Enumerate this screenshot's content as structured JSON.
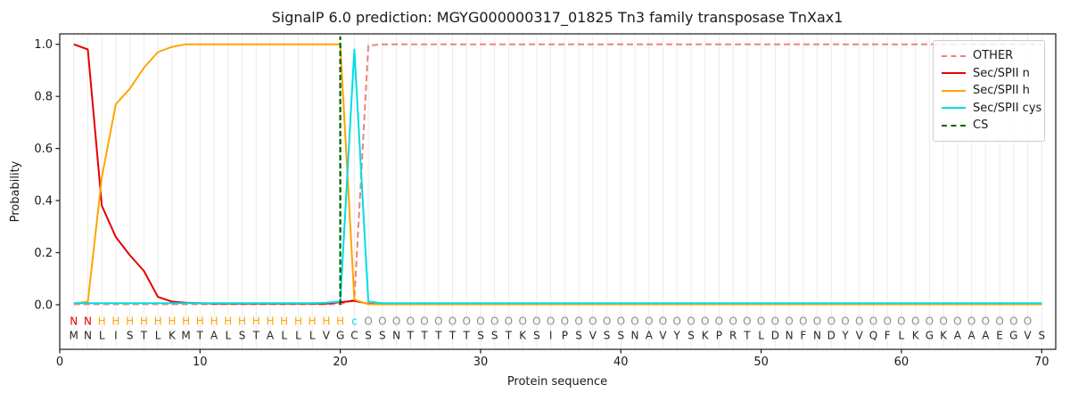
{
  "title": "SignalP 6.0 prediction: MGYG000000317_01825 Tn3 family transposase TnXax1",
  "axes": {
    "xlabel": "Protein sequence",
    "ylabel": "Probability",
    "x_ticks": [
      0,
      10,
      20,
      30,
      40,
      50,
      60,
      70
    ],
    "y_ticks": [
      {
        "label": "0.0",
        "value": 0.0
      },
      {
        "label": "0.2",
        "value": 0.2
      },
      {
        "label": "0.4",
        "value": 0.4
      },
      {
        "label": "0.6",
        "value": 0.6
      },
      {
        "label": "0.8",
        "value": 0.8
      },
      {
        "label": "1.0",
        "value": 1.0
      }
    ]
  },
  "colors": {
    "other": "#f08080",
    "sec_spii_n": "#e60000",
    "sec_spii_h": "#ffa500",
    "sec_spii_cys": "#00dde6",
    "cs": "#006400",
    "grid": "#ebebeb",
    "spine": "#1a1a1a",
    "text": "#1a1a1a",
    "sequence_letters": "#262626",
    "region_o": "#8c8c8c"
  },
  "legend": {
    "entries": [
      {
        "label": "OTHER",
        "color": "#f08080",
        "dashed": true
      },
      {
        "label": "Sec/SPII n",
        "color": "#e60000",
        "dashed": false
      },
      {
        "label": "Sec/SPII h",
        "color": "#ffa500",
        "dashed": false
      },
      {
        "label": "Sec/SPII cys",
        "color": "#00dde6",
        "dashed": false
      },
      {
        "label": "CS",
        "color": "#006400",
        "dashed": true
      }
    ]
  },
  "sequence": {
    "residues": "MNLISTLKMTALSTALLLVGCSSNTTTTTSSTKSIPSVSSNAVYSKPRTLDNFNDYVQFLKGKAAAEGVS",
    "region_labels": "NNHHHHHHHHHHHHHHHHHHcOOOOOOOOOOOOOOOOOOOOOOOOOOOOOOOOOOOOOOOOOOOOOOOO",
    "label_colors": {
      "N": "#e60000",
      "H": "#ffa500",
      "c": "#00dde6",
      "O": "#8c8c8c"
    }
  },
  "chart_data": {
    "type": "line",
    "title": "SignalP 6.0 prediction: MGYG000000317_01825 Tn3 family transposase TnXax1",
    "xlabel": "Protein sequence",
    "ylabel": "Probability",
    "xlim": [
      0,
      71
    ],
    "ylim": [
      -0.171,
      1.04
    ],
    "grid": "vertical gridline at every residue position 1-70",
    "legend_position": "upper right",
    "x": [
      1,
      2,
      3,
      4,
      5,
      6,
      7,
      8,
      9,
      10,
      11,
      12,
      13,
      14,
      15,
      16,
      17,
      18,
      19,
      20,
      21,
      22,
      23,
      24,
      25,
      26,
      27,
      28,
      29,
      30,
      31,
      32,
      33,
      34,
      35,
      36,
      37,
      38,
      39,
      40,
      41,
      42,
      43,
      44,
      45,
      46,
      47,
      48,
      49,
      50,
      51,
      52,
      53,
      54,
      55,
      56,
      57,
      58,
      59,
      60,
      61,
      62,
      63,
      64,
      65,
      66,
      67,
      68,
      69,
      70
    ],
    "series": [
      {
        "name": "OTHER",
        "color": "#f08080",
        "style": "dashed",
        "values": [
          0.002,
          0.002,
          0.002,
          0.002,
          0.002,
          0.002,
          0.002,
          0.002,
          0.002,
          0.002,
          0.002,
          0.002,
          0.002,
          0.002,
          0.002,
          0.002,
          0.002,
          0.002,
          0.002,
          0.002,
          0.02,
          0.995,
          1.0,
          1.0,
          1.0,
          1.0,
          1.0,
          1.0,
          1.0,
          1.0,
          1.0,
          1.0,
          1.0,
          1.0,
          1.0,
          1.0,
          1.0,
          1.0,
          1.0,
          1.0,
          1.0,
          1.0,
          1.0,
          1.0,
          1.0,
          1.0,
          1.0,
          1.0,
          1.0,
          1.0,
          1.0,
          1.0,
          1.0,
          1.0,
          1.0,
          1.0,
          1.0,
          1.0,
          1.0,
          1.0,
          1.0,
          1.0,
          1.0,
          1.0,
          1.0,
          1.0,
          1.0,
          1.0,
          1.0,
          1.0
        ]
      },
      {
        "name": "Sec/SPII n",
        "color": "#e60000",
        "style": "solid",
        "values": [
          1.0,
          0.98,
          0.38,
          0.26,
          0.19,
          0.13,
          0.03,
          0.012,
          0.008,
          0.006,
          0.004,
          0.004,
          0.004,
          0.004,
          0.004,
          0.004,
          0.004,
          0.004,
          0.004,
          0.01,
          0.015,
          0.004,
          0.002,
          0.002,
          0.002,
          0.002,
          0.002,
          0.002,
          0.002,
          0.002,
          0.002,
          0.002,
          0.002,
          0.002,
          0.002,
          0.002,
          0.002,
          0.002,
          0.002,
          0.002,
          0.002,
          0.002,
          0.002,
          0.002,
          0.002,
          0.002,
          0.002,
          0.002,
          0.002,
          0.002,
          0.002,
          0.002,
          0.002,
          0.002,
          0.002,
          0.002,
          0.002,
          0.002,
          0.002,
          0.002,
          0.002,
          0.002,
          0.002,
          0.002,
          0.002,
          0.002,
          0.002,
          0.002,
          0.002,
          0.002
        ]
      },
      {
        "name": "Sec/SPII h",
        "color": "#ffa500",
        "style": "solid",
        "values": [
          0.004,
          0.012,
          0.49,
          0.77,
          0.83,
          0.91,
          0.97,
          0.99,
          1.0,
          1.0,
          1.0,
          1.0,
          1.0,
          1.0,
          1.0,
          1.0,
          1.0,
          1.0,
          1.0,
          1.0,
          0.02,
          0.002,
          0.002,
          0.002,
          0.002,
          0.002,
          0.002,
          0.002,
          0.002,
          0.002,
          0.002,
          0.002,
          0.002,
          0.002,
          0.002,
          0.002,
          0.002,
          0.002,
          0.002,
          0.002,
          0.002,
          0.002,
          0.002,
          0.002,
          0.002,
          0.002,
          0.002,
          0.002,
          0.002,
          0.002,
          0.002,
          0.002,
          0.002,
          0.002,
          0.002,
          0.002,
          0.002,
          0.002,
          0.002,
          0.002,
          0.002,
          0.002,
          0.002,
          0.002,
          0.002,
          0.002,
          0.002,
          0.002,
          0.002,
          0.002
        ]
      },
      {
        "name": "Sec/SPII cys",
        "color": "#00dde6",
        "style": "solid",
        "values": [
          0.006,
          0.006,
          0.006,
          0.006,
          0.006,
          0.006,
          0.006,
          0.006,
          0.006,
          0.006,
          0.006,
          0.006,
          0.006,
          0.006,
          0.006,
          0.006,
          0.006,
          0.006,
          0.008,
          0.012,
          0.98,
          0.012,
          0.006,
          0.006,
          0.006,
          0.006,
          0.006,
          0.006,
          0.006,
          0.006,
          0.006,
          0.006,
          0.006,
          0.006,
          0.006,
          0.006,
          0.006,
          0.006,
          0.006,
          0.006,
          0.006,
          0.006,
          0.006,
          0.006,
          0.006,
          0.006,
          0.006,
          0.006,
          0.006,
          0.006,
          0.006,
          0.006,
          0.006,
          0.006,
          0.006,
          0.006,
          0.006,
          0.006,
          0.006,
          0.006,
          0.006,
          0.006,
          0.006,
          0.006,
          0.006,
          0.006,
          0.006,
          0.006,
          0.006,
          0.006
        ]
      }
    ],
    "cs_marker": {
      "name": "CS",
      "x": 20,
      "color": "#006400",
      "style": "dashed",
      "y_from": 0.0,
      "y_to": 1.03
    }
  }
}
